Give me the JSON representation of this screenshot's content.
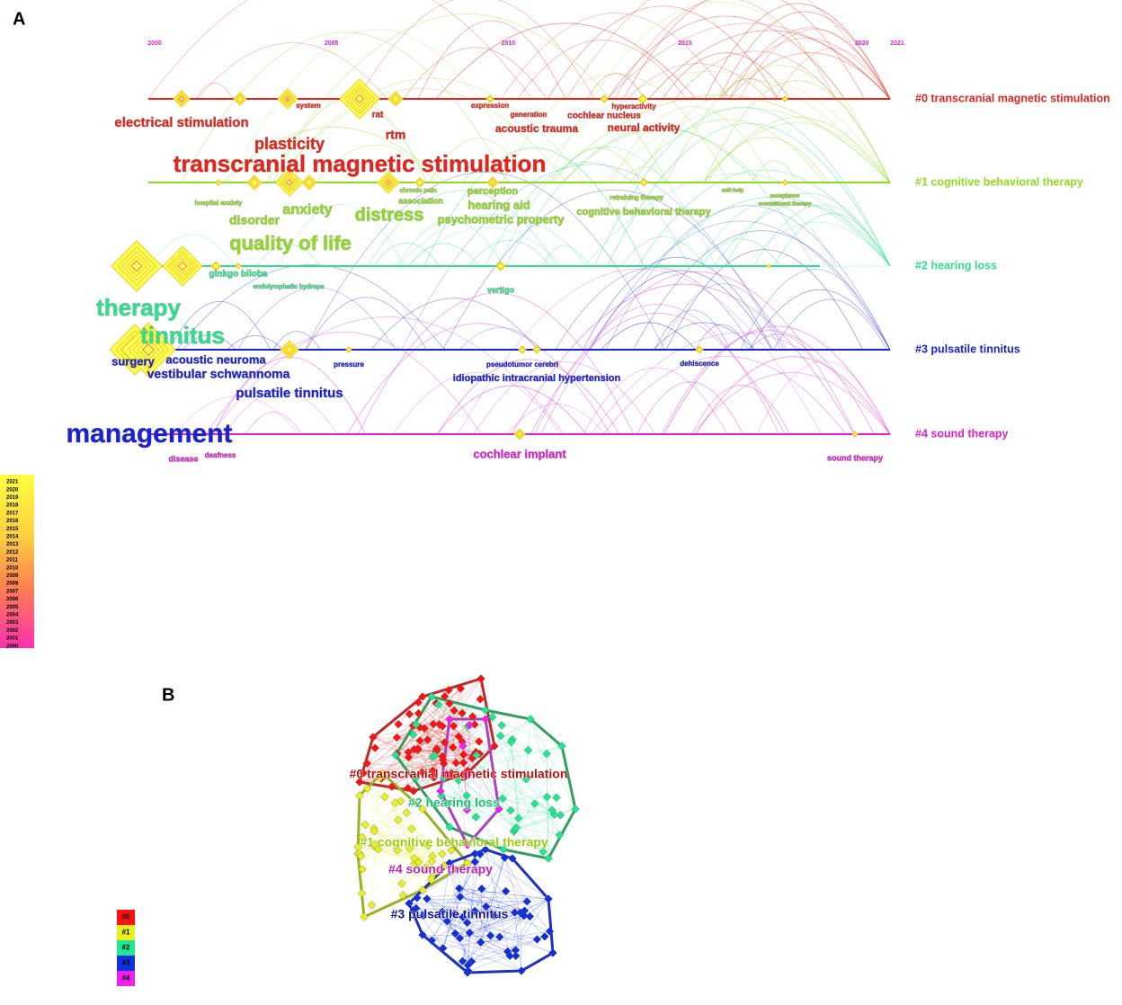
{
  "panel_a": {
    "label": "A",
    "years": [
      2000,
      2005,
      2010,
      2015,
      2020,
      2021
    ],
    "clusters": [
      {
        "label": "#0 transcranial magnetic stimulation",
        "color": "#e8231b"
      },
      {
        "label": "#1 cognitive behavioral therapy",
        "color": "#8fdc1e"
      },
      {
        "label": "#2 hearing loss",
        "color": "#2ee08c"
      },
      {
        "label": "#3 pulsatile tinnitus",
        "color": "#1a22d4"
      },
      {
        "label": "#4 sound therapy",
        "color": "#e020d2"
      }
    ],
    "keywords": [
      {
        "text": "electrical stimulation",
        "cluster": 0
      },
      {
        "text": "system",
        "cluster": 0
      },
      {
        "text": "rat",
        "cluster": 0
      },
      {
        "text": "rtm",
        "cluster": 0
      },
      {
        "text": "plasticity",
        "cluster": 0
      },
      {
        "text": "transcranial magnetic stimulation",
        "cluster": 0
      },
      {
        "text": "expression",
        "cluster": 0
      },
      {
        "text": "generation",
        "cluster": 0
      },
      {
        "text": "hyperactivity",
        "cluster": 0
      },
      {
        "text": "cochlear nucleus",
        "cluster": 0
      },
      {
        "text": "acoustic trauma",
        "cluster": 0
      },
      {
        "text": "neural activity",
        "cluster": 0
      },
      {
        "text": "hospital anxiety",
        "cluster": 1
      },
      {
        "text": "disorder",
        "cluster": 1
      },
      {
        "text": "anxiety",
        "cluster": 1
      },
      {
        "text": "distress",
        "cluster": 1
      },
      {
        "text": "chronic pain",
        "cluster": 1
      },
      {
        "text": "association",
        "cluster": 1
      },
      {
        "text": "perception",
        "cluster": 1
      },
      {
        "text": "hearing aid",
        "cluster": 1
      },
      {
        "text": "psychometric property",
        "cluster": 1
      },
      {
        "text": "retraining therapy",
        "cluster": 1
      },
      {
        "text": "cognitive behavioral therapy",
        "cluster": 1
      },
      {
        "text": "self-help",
        "cluster": 1
      },
      {
        "text": "acceptance",
        "cluster": 1
      },
      {
        "text": "commitment therapy",
        "cluster": 1
      },
      {
        "text": "quality of life",
        "cluster": 1
      },
      {
        "text": "ginkgo biloba",
        "cluster": 2
      },
      {
        "text": "endolymphatic hydrops",
        "cluster": 2
      },
      {
        "text": "vertigo",
        "cluster": 2
      },
      {
        "text": "therapy",
        "cluster": 2
      },
      {
        "text": "tinnitus",
        "cluster": 2
      },
      {
        "text": "surgery",
        "cluster": 3
      },
      {
        "text": "acoustic neuroma",
        "cluster": 3
      },
      {
        "text": "vestibular schwannoma",
        "cluster": 3
      },
      {
        "text": "pressure",
        "cluster": 3
      },
      {
        "text": "pseudotumor cerebri",
        "cluster": 3
      },
      {
        "text": "dehiscence",
        "cluster": 3
      },
      {
        "text": "idiopathic intracranial hypertension",
        "cluster": 3
      },
      {
        "text": "pulsatile tinnitus",
        "cluster": 3
      },
      {
        "text": "management",
        "cluster": 3
      },
      {
        "text": "disease",
        "cluster": 4
      },
      {
        "text": "deafness",
        "cluster": 4
      },
      {
        "text": "cochlear implant",
        "cluster": 4
      },
      {
        "text": "sound therapy",
        "cluster": 4
      }
    ],
    "legend_years": [
      2021,
      2020,
      2019,
      2018,
      2017,
      2016,
      2015,
      2014,
      2013,
      2012,
      2011,
      2010,
      2009,
      2008,
      2007,
      2006,
      2005,
      2004,
      2003,
      2002,
      2001,
      2000
    ]
  },
  "panel_b": {
    "label": "B",
    "legend": [
      "#0",
      "#1",
      "#2",
      "#3",
      "#4"
    ]
  }
}
